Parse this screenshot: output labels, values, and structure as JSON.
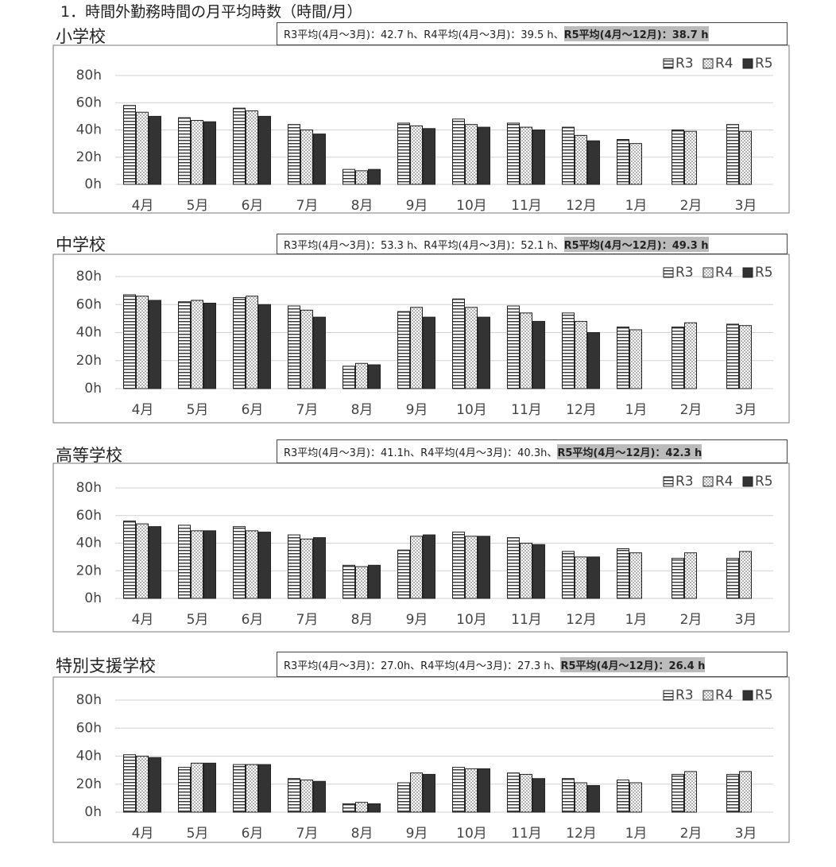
{
  "heading": "1．時間外勤務時間の月平均時数（時間/月）",
  "chart_data": [
    {
      "type": "bar",
      "title": "小学校",
      "note": "R3平均(4月～3月)：42.7 h、R4平均(4月～3月)：39.5 h、",
      "note_highlight": "R5平均(4月～12月)：38.7 h",
      "categories": [
        "4月",
        "5月",
        "6月",
        "7月",
        "8月",
        "9月",
        "10月",
        "11月",
        "12月",
        "1月",
        "2月",
        "3月"
      ],
      "series": [
        {
          "name": "R3",
          "color": "#333333",
          "pattern": "horizontal-stripes",
          "values": [
            58,
            49,
            56,
            44,
            11,
            45,
            48,
            45,
            42,
            33,
            40,
            44
          ]
        },
        {
          "name": "R4",
          "color": "#333333",
          "pattern": "dots",
          "values": [
            53,
            47,
            54,
            40,
            10,
            43,
            44,
            42,
            36,
            30,
            39,
            39
          ]
        },
        {
          "name": "R5",
          "color": "#333333",
          "pattern": "solid",
          "values": [
            50,
            46,
            50,
            37,
            11,
            41,
            42,
            40,
            32,
            null,
            null,
            null
          ]
        }
      ],
      "ylim": [
        0,
        80
      ],
      "yticks": [
        {
          "value": 0,
          "label": "0h"
        },
        {
          "value": 20,
          "label": "20h"
        },
        {
          "value": 40,
          "label": "40h"
        },
        {
          "value": 60,
          "label": "60h"
        },
        {
          "value": 80,
          "label": "80h"
        }
      ],
      "grid": true,
      "legend": "top-right"
    },
    {
      "type": "bar",
      "title": "中学校",
      "note": "R3平均(4月～3月)：53.3 h、R4平均(4月～3月)：52.1 h、",
      "note_highlight": "R5平均(4月～12月)：49.3 h",
      "categories": [
        "4月",
        "5月",
        "6月",
        "7月",
        "8月",
        "9月",
        "10月",
        "11月",
        "12月",
        "1月",
        "2月",
        "3月"
      ],
      "series": [
        {
          "name": "R3",
          "color": "#333333",
          "pattern": "horizontal-stripes",
          "values": [
            67,
            62,
            65,
            59,
            16,
            55,
            64,
            59,
            54,
            44,
            44,
            46
          ]
        },
        {
          "name": "R4",
          "color": "#333333",
          "pattern": "dots",
          "values": [
            66,
            63,
            66,
            56,
            18,
            58,
            58,
            54,
            48,
            42,
            47,
            45
          ]
        },
        {
          "name": "R5",
          "color": "#333333",
          "pattern": "solid",
          "values": [
            63,
            61,
            60,
            51,
            17,
            51,
            51,
            48,
            40,
            null,
            null,
            null
          ]
        }
      ],
      "ylim": [
        0,
        80
      ],
      "yticks": [
        {
          "value": 0,
          "label": "0h"
        },
        {
          "value": 20,
          "label": "20h"
        },
        {
          "value": 40,
          "label": "40h"
        },
        {
          "value": 60,
          "label": "60h"
        },
        {
          "value": 80,
          "label": "80h"
        }
      ],
      "grid": true,
      "legend": "top-right"
    },
    {
      "type": "bar",
      "title": "高等学校",
      "note": "R3平均(4月～3月)：41.1h、R4平均(4月～3月)：40.3h、",
      "note_highlight": "R5平均(4月～12月)：42.3 h",
      "categories": [
        "4月",
        "5月",
        "6月",
        "7月",
        "8月",
        "9月",
        "10月",
        "11月",
        "12月",
        "1月",
        "2月",
        "3月"
      ],
      "series": [
        {
          "name": "R3",
          "color": "#333333",
          "pattern": "horizontal-stripes",
          "values": [
            56,
            53,
            52,
            46,
            24,
            35,
            48,
            44,
            34,
            36,
            29,
            29
          ]
        },
        {
          "name": "R4",
          "color": "#333333",
          "pattern": "dots",
          "values": [
            54,
            49,
            49,
            43,
            23,
            45,
            45,
            40,
            30,
            33,
            33,
            34
          ]
        },
        {
          "name": "R5",
          "color": "#333333",
          "pattern": "solid",
          "values": [
            52,
            49,
            48,
            44,
            24,
            46,
            45,
            39,
            30,
            null,
            null,
            null
          ]
        }
      ],
      "ylim": [
        0,
        80
      ],
      "yticks": [
        {
          "value": 0,
          "label": "0h"
        },
        {
          "value": 20,
          "label": "20h"
        },
        {
          "value": 40,
          "label": "40h"
        },
        {
          "value": 60,
          "label": "60h"
        },
        {
          "value": 80,
          "label": "80h"
        }
      ],
      "grid": true,
      "legend": "top-right"
    },
    {
      "type": "bar",
      "title": "特別支援学校",
      "note": "R3平均(4月～3月)：27.0h、R4平均(4月～3月)：27.3 h、",
      "note_highlight": "R5平均(4月～12月)：26.4 h",
      "categories": [
        "4月",
        "5月",
        "6月",
        "7月",
        "8月",
        "9月",
        "10月",
        "11月",
        "12月",
        "1月",
        "2月",
        "3月"
      ],
      "series": [
        {
          "name": "R3",
          "color": "#333333",
          "pattern": "horizontal-stripes",
          "values": [
            41,
            32,
            34,
            24,
            6,
            21,
            32,
            28,
            24,
            23,
            27,
            27
          ]
        },
        {
          "name": "R4",
          "color": "#333333",
          "pattern": "dots",
          "values": [
            40,
            35,
            34,
            23,
            7,
            28,
            31,
            27,
            21,
            21,
            29,
            29
          ]
        },
        {
          "name": "R5",
          "color": "#333333",
          "pattern": "solid",
          "values": [
            39,
            35,
            34,
            22,
            6,
            27,
            31,
            24,
            19,
            null,
            null,
            null
          ]
        }
      ],
      "ylim": [
        0,
        80
      ],
      "yticks": [
        {
          "value": 0,
          "label": "0h"
        },
        {
          "value": 20,
          "label": "20h"
        },
        {
          "value": 40,
          "label": "40h"
        },
        {
          "value": 60,
          "label": "60h"
        },
        {
          "value": 80,
          "label": "80h"
        }
      ],
      "grid": true,
      "legend": "top-right"
    }
  ]
}
